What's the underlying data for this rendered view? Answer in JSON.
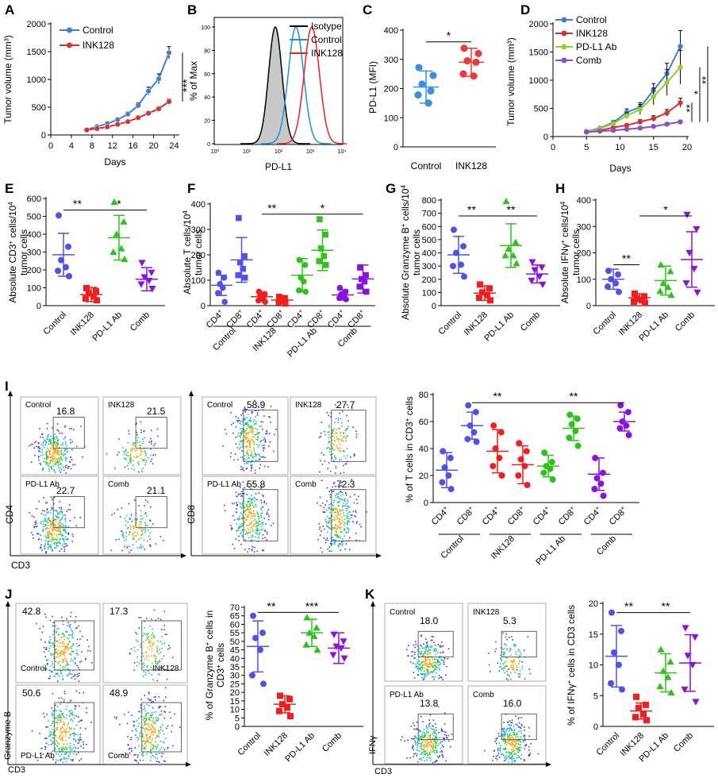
{
  "colors": {
    "control": "#3f7fd9",
    "ink128": "#d8322f",
    "pdl1": "#8bc34a",
    "comb": "#7e4fc2",
    "blue": "#4f52e6",
    "red": "#f01e1e",
    "green": "#2ec21b",
    "purple": "#8a12e0",
    "pdl1_line": "#9acd32",
    "comb_line": "#8a4fc9"
  },
  "panel_letters": {
    "A": "A",
    "B": "B",
    "C": "C",
    "D": "D",
    "E": "E",
    "F": "F",
    "G": "G",
    "H": "H",
    "I": "I",
    "J": "J",
    "K": "K"
  },
  "groups": [
    "Control",
    "INK128",
    "PD-L1 Ab",
    "Comb"
  ],
  "cd_labels": {
    "cd4": "CD4",
    "cd8": "CD8",
    "plus": "+"
  },
  "chart_data": [
    {
      "panel": "A",
      "type": "line",
      "ylabel": "Tumor volume (mm³)",
      "xlabel": "Days",
      "ylim": [
        0,
        2000
      ],
      "yticks": [
        0,
        500,
        1000,
        1500,
        2000
      ],
      "xlim": [
        0,
        25
      ],
      "xticks": [
        0,
        4,
        8,
        12,
        16,
        20,
        24
      ],
      "series": [
        {
          "name": "Control",
          "x": [
            7,
            9,
            11,
            13,
            15,
            17,
            19,
            21,
            23
          ],
          "y": [
            95,
            150,
            205,
            275,
            375,
            530,
            790,
            1010,
            1480
          ],
          "err": [
            15,
            20,
            25,
            30,
            40,
            50,
            70,
            90,
            110
          ]
        },
        {
          "name": "INK128",
          "x": [
            7,
            9,
            11,
            13,
            15,
            17,
            19,
            21,
            23
          ],
          "y": [
            90,
            115,
            145,
            190,
            240,
            310,
            390,
            470,
            600
          ],
          "err": [
            10,
            12,
            15,
            20,
            25,
            30,
            35,
            40,
            45
          ]
        }
      ],
      "annotation": "***"
    },
    {
      "panel": "B",
      "type": "histogram",
      "ylabel": "% of Max",
      "xlabel": "PD-L1",
      "yticks": [
        0,
        20,
        40,
        60,
        80,
        100
      ],
      "xticks": [
        "10⁰",
        "10¹",
        "10²",
        "10³",
        "10⁴"
      ],
      "series": [
        {
          "name": "Isotype",
          "peak_log": 1.9,
          "width": 0.21
        },
        {
          "name": "Control",
          "peak_log": 2.55,
          "width": 0.24
        },
        {
          "name": "INK128",
          "peak_log": 3.05,
          "width": 0.24
        }
      ]
    },
    {
      "panel": "C",
      "type": "scatter",
      "ylabel": "PD-L1 (MFI)",
      "ylim": [
        0,
        400
      ],
      "yticks": [
        0,
        100,
        200,
        300,
        400
      ],
      "categories": [
        "Control",
        "INK128"
      ],
      "points": [
        [
          272,
          245,
          215,
          192,
          178,
          150
        ],
        [
          338,
          320,
          295,
          290,
          250,
          243
        ]
      ],
      "mean": [
        205,
        290
      ],
      "sd": [
        55,
        48
      ],
      "sig": [
        {
          "text": "*",
          "from": 0,
          "to": 1,
          "level": 360
        }
      ]
    },
    {
      "panel": "D",
      "type": "line",
      "ylabel": "Tumor volume (mm³)",
      "xlabel": "Days",
      "ylim": [
        0,
        2000
      ],
      "yticks": [
        0,
        500,
        1000,
        1500,
        2000
      ],
      "xlim": [
        0,
        20
      ],
      "xticks": [
        0,
        5,
        10,
        15,
        20
      ],
      "series": [
        {
          "name": "Control",
          "x": [
            5,
            7,
            9,
            11,
            13,
            15,
            17,
            19
          ],
          "y": [
            90,
            150,
            250,
            430,
            520,
            820,
            1120,
            1600
          ],
          "err": [
            10,
            20,
            35,
            60,
            80,
            120,
            180,
            280
          ]
        },
        {
          "name": "INK128",
          "x": [
            5,
            7,
            9,
            11,
            13,
            15,
            17,
            19
          ],
          "y": [
            80,
            110,
            160,
            200,
            260,
            320,
            420,
            600
          ],
          "err": [
            8,
            12,
            18,
            25,
            40,
            50,
            60,
            80
          ]
        },
        {
          "name": "PD-L1 Ab",
          "x": [
            5,
            7,
            9,
            11,
            13,
            15,
            17,
            19
          ],
          "y": [
            85,
            140,
            230,
            370,
            480,
            710,
            960,
            1230
          ],
          "err": [
            10,
            18,
            30,
            50,
            90,
            150,
            230,
            300
          ]
        },
        {
          "name": "Comb",
          "x": [
            5,
            7,
            9,
            11,
            13,
            15,
            17,
            19
          ],
          "y": [
            80,
            95,
            110,
            130,
            150,
            180,
            220,
            260
          ],
          "err": [
            5,
            8,
            10,
            12,
            15,
            20,
            25,
            30
          ]
        }
      ],
      "sig_labels": [
        "**",
        "*",
        "**"
      ]
    },
    {
      "panel": "E",
      "type": "scatter",
      "ylabel_main": "Absolute CD3",
      "ylabel_rest": " cells/10",
      "ylabel_sup": "4",
      "ylabel2": "tumor cells",
      "ylim": [
        0,
        600
      ],
      "yticks": [
        0,
        100,
        200,
        300,
        400,
        500,
        600
      ],
      "categories": [
        "Control",
        "INK128",
        "PD-L1 Ab",
        "Comb"
      ],
      "points": [
        [
          505,
          330,
          255,
          215,
          195,
          165
        ],
        [
          98,
          82,
          68,
          52,
          40,
          30
        ],
        [
          580,
          470,
          400,
          320,
          300,
          260
        ],
        [
          240,
          185,
          160,
          140,
          120,
          95
        ]
      ],
      "mean": [
        285,
        62,
        380,
        148
      ],
      "sd": [
        120,
        40,
        125,
        65
      ],
      "sig": [
        {
          "text": "**",
          "from": 0,
          "to": 1,
          "level": 535
        },
        {
          "text": "*",
          "from": 1,
          "to": 3,
          "level": 535
        }
      ]
    },
    {
      "panel": "F",
      "type": "scatter",
      "ylabel_main": "Absolute T cells/10",
      "ylabel_sup": "4",
      "ylabel2": "tumor cells",
      "ylim": [
        0,
        400
      ],
      "yticks": [
        0,
        100,
        200,
        300,
        400
      ],
      "categories": [
        "CD4+",
        "CD8+",
        "CD4+",
        "CD8+",
        "CD4+",
        "CD8+",
        "CD4+",
        "CD8+"
      ],
      "group_labels": [
        "Control",
        "INK128",
        "PD-L1 Ab",
        "Comb"
      ],
      "points": [
        [
          130,
          110,
          85,
          70,
          50,
          15
        ],
        [
          345,
          195,
          170,
          145,
          120,
          110
        ],
        [
          55,
          45,
          40,
          30,
          20,
          15
        ],
        [
          35,
          30,
          25,
          18,
          12,
          8
        ],
        [
          180,
          160,
          110,
          95,
          60,
          55
        ],
        [
          340,
          280,
          225,
          195,
          175,
          160
        ],
        [
          70,
          55,
          45,
          40,
          30,
          25
        ],
        [
          150,
          120,
          105,
          95,
          75,
          55
        ]
      ],
      "mean": [
        80,
        180,
        35,
        22,
        120,
        218,
        42,
        105
      ],
      "sd": [
        40,
        88,
        18,
        12,
        65,
        80,
        20,
        55
      ],
      "sig": [
        {
          "text": "**",
          "from": 2,
          "to": 3,
          "level": 360
        },
        {
          "text": "*",
          "from": 3,
          "to": 7,
          "level": 360
        }
      ]
    },
    {
      "panel": "G",
      "type": "scatter",
      "ylabel_main": "Absolute Granzyme B",
      "ylabel_rest": " cells/10",
      "ylabel_sup": "4",
      "ylabel2": "tumor cells",
      "ylim": [
        0,
        800
      ],
      "yticks": [
        0,
        100,
        200,
        300,
        400,
        500,
        600,
        700,
        800
      ],
      "categories": [
        "Control",
        "INK128",
        "PD-L1 Ab",
        "Comb"
      ],
      "points": [
        [
          575,
          450,
          400,
          310,
          300,
          220
        ],
        [
          160,
          130,
          100,
          80,
          60,
          40
        ],
        [
          790,
          480,
          430,
          380,
          380,
          320
        ],
        [
          330,
          290,
          270,
          220,
          190,
          160
        ]
      ],
      "mean": [
        385,
        95,
        455,
        240
      ],
      "sd": [
        140,
        55,
        165,
        68
      ],
      "sig": [
        {
          "text": "**",
          "from": 0,
          "to": 1,
          "level": 680
        },
        {
          "text": "**",
          "from": 1,
          "to": 3,
          "level": 680
        }
      ]
    },
    {
      "panel": "H",
      "type": "scatter",
      "ylabel_main": "Absolute IFNγ",
      "ylabel_rest": " cells/10",
      "ylabel_sup": "4",
      "ylabel2": "tumor cells",
      "ylim": [
        0,
        400
      ],
      "yticks": [
        0,
        100,
        200,
        300,
        400
      ],
      "categories": [
        "Control",
        "INK128",
        "PD-L1 Ab",
        "Comb"
      ],
      "points": [
        [
          132,
          118,
          100,
          85,
          72,
          52
        ],
        [
          45,
          35,
          28,
          20,
          15,
          10
        ],
        [
          155,
          130,
          85,
          70,
          55,
          40
        ],
        [
          345,
          290,
          200,
          140,
          85,
          50
        ]
      ],
      "mean": [
        100,
        30,
        95,
        175
      ],
      "sd": [
        38,
        15,
        55,
        105
      ],
      "sig": [
        {
          "text": "**",
          "from": 0,
          "to": 1,
          "level": 155
        },
        {
          "text": "*",
          "from": 1,
          "to": 3,
          "level": 340
        }
      ]
    },
    {
      "panel": "I",
      "type": "scatter",
      "ylabel_main": "% of T cells in CD3",
      "ylabel_rest": " cells",
      "ylim": [
        0,
        80
      ],
      "yticks": [
        0,
        20,
        40,
        60,
        80
      ],
      "categories": [
        "CD4+",
        "CD8+",
        "CD4+",
        "CD8+",
        "CD4+",
        "CD8+",
        "CD4+",
        "CD8+"
      ],
      "group_labels": [
        "Control",
        "INK128",
        "PD-L1 Ab",
        "Comb"
      ],
      "points": [
        [
          38,
          33,
          26,
          20,
          15,
          10
        ],
        [
          72,
          67,
          57,
          52,
          47,
          45
        ],
        [
          57,
          52,
          40,
          33,
          27,
          20
        ],
        [
          44,
          38,
          32,
          27,
          20,
          13
        ],
        [
          37,
          30,
          27,
          25,
          22,
          17
        ],
        [
          65,
          62,
          58,
          53,
          48,
          42
        ],
        [
          33,
          22,
          18,
          14,
          10,
          5
        ],
        [
          72,
          67,
          60,
          57,
          55,
          50
        ]
      ],
      "mean": [
        24,
        57,
        38,
        28,
        27,
        55,
        21,
        60
      ],
      "sd": [
        13,
        10,
        16,
        14,
        8,
        9,
        12,
        7
      ],
      "sig": [
        {
          "text": "**",
          "from": 1,
          "to": 3,
          "level": 74
        },
        {
          "text": "**",
          "from": 3,
          "to": 7,
          "level": 74
        }
      ]
    },
    {
      "panel": "J",
      "type": "scatter",
      "ylabel_main": "% of Granzyme B",
      "ylabel_rest": " cells in",
      "ylabel2": "CD3",
      "ylabel2_rest": " cells",
      "ylim": [
        0,
        70
      ],
      "yticks": [
        0,
        5,
        10,
        15,
        20,
        25,
        30,
        35,
        40,
        45,
        50,
        55,
        60,
        65,
        70
      ],
      "categories": [
        "Control",
        "INK128",
        "PD-L1 Ab",
        "Comb"
      ],
      "points": [
        [
          65,
          55,
          52,
          45,
          30,
          25
        ],
        [
          18,
          16,
          13,
          11,
          9,
          6
        ],
        [
          64,
          58,
          55,
          53,
          48,
          45
        ],
        [
          54,
          50,
          47,
          46,
          42,
          40
        ]
      ],
      "mean": [
        47,
        13,
        55,
        46
      ],
      "sd": [
        15,
        5,
        8,
        9
      ],
      "sig": [
        {
          "text": "**",
          "from": 0,
          "to": 1,
          "level": 67
        },
        {
          "text": "***",
          "from": 1,
          "to": 3,
          "level": 67
        }
      ]
    },
    {
      "panel": "K",
      "type": "scatter",
      "ylabel_main": "% of IFNγ",
      "ylabel_rest": " cells in CD3",
      "ylabel_end": " cells",
      "ylim": [
        0,
        20
      ],
      "yticks": [
        0,
        5,
        10,
        15,
        20
      ],
      "categories": [
        "Control",
        "INK128",
        "PD-L1 Ab",
        "Comb"
      ],
      "points": [
        [
          18.5,
          15.5,
          12.0,
          10.0,
          7.0,
          6.0
        ],
        [
          4.8,
          3.5,
          3.0,
          2.0,
          1.5,
          1.0
        ],
        [
          12.5,
          10.5,
          9.0,
          8.0,
          6.5,
          5.5
        ],
        [
          16.0,
          14.5,
          11.5,
          10.0,
          6.0,
          4.0
        ]
      ],
      "mean": [
        11.4,
        2.5,
        8.7,
        10.3
      ],
      "sd": [
        5.0,
        1.3,
        3.1,
        4.6
      ],
      "sig": [
        {
          "text": "**",
          "from": 0,
          "to": 1,
          "level": 18.5
        },
        {
          "text": "**",
          "from": 1,
          "to": 3,
          "level": 18.5
        }
      ]
    }
  ],
  "facs": {
    "cd4_plots": [
      {
        "label": "Control",
        "value": "16.8"
      },
      {
        "label": "INK128",
        "value": "21.5"
      },
      {
        "label": "PD-L1 Ab",
        "value": "22.7"
      },
      {
        "label": "Comb",
        "value": "21.1"
      }
    ],
    "cd4_axis": {
      "y": "CD4",
      "x": "CD3"
    },
    "cd8_plots": [
      {
        "label": "Control",
        "value": "58.9"
      },
      {
        "label": "INK128",
        "value": "27.7"
      },
      {
        "label": "PD-L1 Ab",
        "value": "55.8"
      },
      {
        "label": "Comb",
        "value": "72.3"
      }
    ],
    "cd8_axis": {
      "y": "CD8"
    },
    "gzb_plots": [
      {
        "label": "Control",
        "value": "42.8"
      },
      {
        "label": "INK128",
        "value": "17.3"
      },
      {
        "label": "PD-L1 Ab",
        "value": "50.6"
      },
      {
        "label": "Comb",
        "value": "48.9"
      }
    ],
    "gzb_axis": {
      "y": "Granzyme B",
      "x": "CD3"
    },
    "ifn_plots": [
      {
        "label": "Control",
        "value": "18.0"
      },
      {
        "label": "INK128",
        "value": "5.3"
      },
      {
        "label": "PD-L1 Ab",
        "value": "13.8"
      },
      {
        "label": "Comb",
        "value": "16.0"
      }
    ],
    "ifn_axis": {
      "y": "IFNγ",
      "x": "CD3"
    }
  }
}
